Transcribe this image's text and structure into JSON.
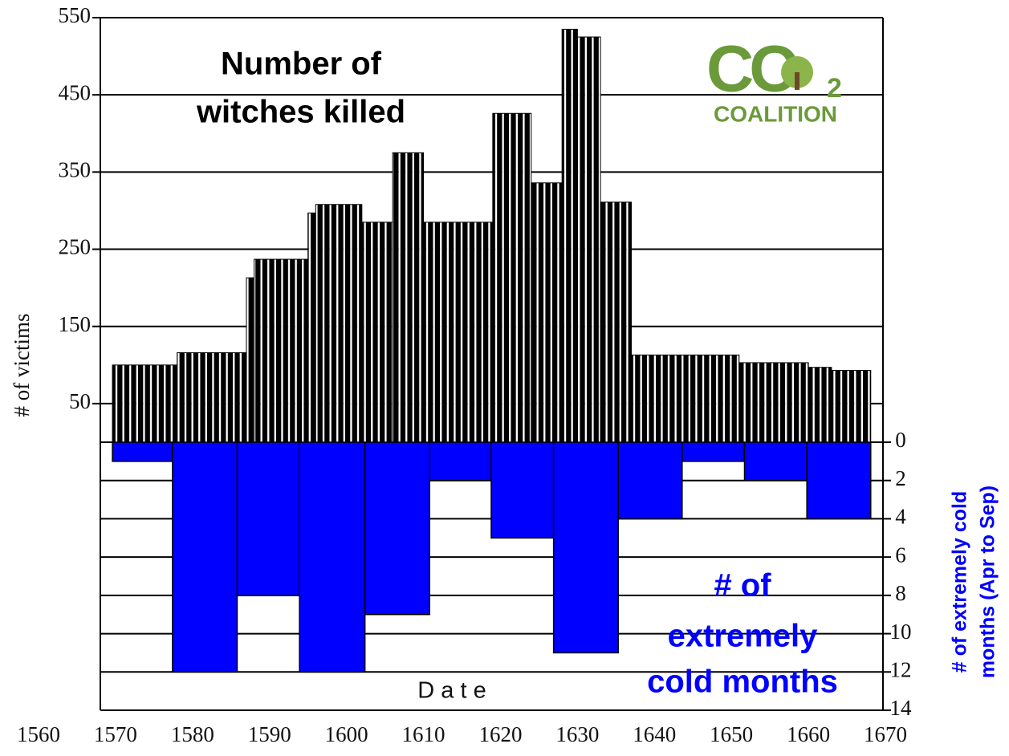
{
  "chart_data": {
    "type": "histogram",
    "annotations": [
      "Number of",
      "witches killed",
      "# of",
      "extremely",
      "cold months",
      "D a t e"
    ],
    "logo": {
      "main": "CO",
      "sub": "2",
      "caption": "COALITION"
    },
    "ylabel": "# of victims",
    "y2label": [
      "# of extremely cold",
      "months (Apr to Sep)"
    ],
    "xlim": [
      1560,
      1670
    ],
    "xticks": [
      1560,
      1570,
      1580,
      1590,
      1600,
      1610,
      1620,
      1630,
      1640,
      1650,
      1660,
      1670
    ],
    "ylim": [
      0,
      550
    ],
    "yticks": [
      50,
      150,
      250,
      350,
      450,
      550
    ],
    "y2lim": [
      0,
      14
    ],
    "y2ticks": [
      0,
      2,
      4,
      6,
      8,
      10,
      12,
      14
    ],
    "grid": true,
    "series": [
      {
        "color": "#000000",
        "bins": [
          1569.6,
          1578,
          1587,
          1588,
          1595,
          1596,
          1602,
          1606,
          1610,
          1619,
          1624,
          1628,
          1630,
          1633,
          1637,
          1651,
          1660,
          1663,
          1668.1
        ],
        "values": [
          100,
          116,
          213,
          237,
          297,
          308,
          285,
          375,
          285,
          426,
          336,
          535,
          525,
          311,
          113,
          103,
          97,
          93
        ]
      },
      {
        "color": "#0000ff",
        "axis": "y2",
        "bins": [
          1569.6,
          1577.4,
          1585.8,
          1593.9,
          1602.4,
          1610.8,
          1618.8,
          1626.9,
          1635.3,
          1643.6,
          1651.7,
          1659.8,
          1668.1
        ],
        "values": [
          1,
          12,
          8,
          12,
          9,
          2,
          5,
          11,
          4,
          1,
          2,
          4
        ]
      }
    ]
  }
}
